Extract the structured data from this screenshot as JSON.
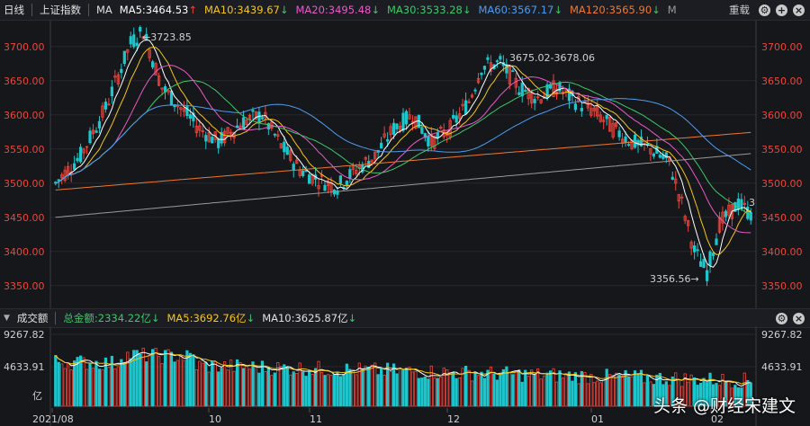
{
  "header": {
    "period": "日线",
    "index_name": "上证指数",
    "ma_label": "MA",
    "ma": [
      {
        "label": "MA5:3464.53",
        "arrow": "↑",
        "color": "#ffffff"
      },
      {
        "label": "MA10:3439.67",
        "arrow": "↓",
        "color": "#f5c518"
      },
      {
        "label": "MA20:3495.48",
        "arrow": "↓",
        "color": "#e85ac8"
      },
      {
        "label": "MA30:3533.28",
        "arrow": "↓",
        "color": "#3cc86a"
      },
      {
        "label": "MA60:3567.17",
        "arrow": "↓",
        "color": "#4d9cf0"
      },
      {
        "label": "MA120:3565.90",
        "arrow": "↓",
        "color": "#f07830"
      },
      {
        "label": "M",
        "arrow": "",
        "color": "#9a9a9a"
      }
    ],
    "overlay_button": "重载"
  },
  "volume_header": {
    "label": "成交额",
    "total": "总金额:2334.22亿",
    "ma5": "MA5:3692.76亿",
    "ma10": "MA10:3625.87亿"
  },
  "colors": {
    "up": "#f0443a",
    "down": "#1cc6cc",
    "bg": "#16171b"
  },
  "chart_data": {
    "type": "candlestick",
    "y_ticks": [
      "3700.00",
      "3650.00",
      "3600.00",
      "3550.00",
      "3500.00",
      "3450.00",
      "3400.00",
      "3350.00"
    ],
    "ylim": [
      3330,
      3730
    ],
    "x_ticks": [
      "2021/08",
      "10",
      "11",
      "12",
      "01",
      "02"
    ],
    "annotations": {
      "high": "←3723.85",
      "mid": "3675.02-3678.06",
      "low": "3356.56→",
      "last": "3"
    },
    "volume_ticks": [
      "9267.82",
      "4633.91",
      "亿"
    ],
    "watermark": "头条 @财经宋建文",
    "anchors": [
      [
        0,
        3500
      ],
      [
        8,
        3540
      ],
      [
        16,
        3610
      ],
      [
        24,
        3705
      ],
      [
        28,
        3723
      ],
      [
        34,
        3640
      ],
      [
        40,
        3610
      ],
      [
        46,
        3580
      ],
      [
        52,
        3560
      ],
      [
        60,
        3590
      ],
      [
        66,
        3600
      ],
      [
        72,
        3555
      ],
      [
        78,
        3520
      ],
      [
        84,
        3505
      ],
      [
        90,
        3495
      ],
      [
        96,
        3520
      ],
      [
        102,
        3540
      ],
      [
        108,
        3580
      ],
      [
        114,
        3600
      ],
      [
        120,
        3560
      ],
      [
        126,
        3580
      ],
      [
        132,
        3620
      ],
      [
        136,
        3670
      ],
      [
        142,
        3676
      ],
      [
        148,
        3640
      ],
      [
        154,
        3625
      ],
      [
        160,
        3640
      ],
      [
        166,
        3620
      ],
      [
        172,
        3605
      ],
      [
        178,
        3580
      ],
      [
        184,
        3560
      ],
      [
        190,
        3550
      ],
      [
        196,
        3530
      ],
      [
        200,
        3470
      ],
      [
        204,
        3400
      ],
      [
        208,
        3370
      ],
      [
        212,
        3440
      ],
      [
        218,
        3470
      ],
      [
        222,
        3455
      ]
    ]
  }
}
